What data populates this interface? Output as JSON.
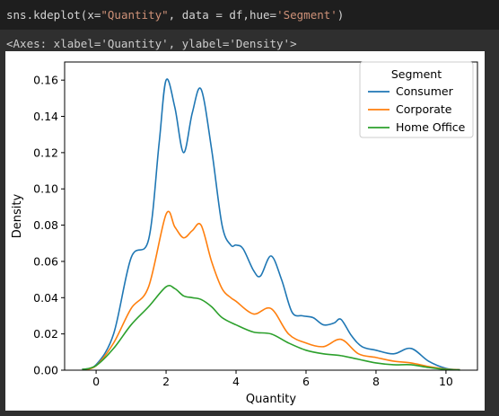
{
  "cell": {
    "code": {
      "func": "sns.kdeplot",
      "open": "(x=",
      "x_arg": "\"Quantity\"",
      "mid": ", data = df,hue=",
      "hue_arg": "'Segment'",
      "close": ")"
    },
    "output_repr": "<Axes: xlabel='Quantity', ylabel='Density'>"
  },
  "chart_data": {
    "type": "line",
    "xlabel": "Quantity",
    "ylabel": "Density",
    "xlim": [
      -0.9,
      10.9
    ],
    "ylim": [
      0,
      0.17
    ],
    "xticks": [
      0,
      2,
      4,
      6,
      8,
      10
    ],
    "yticks": [
      0.0,
      0.02,
      0.04,
      0.06,
      0.08,
      0.1,
      0.12,
      0.14,
      0.16
    ],
    "ytick_labels": [
      "0.00",
      "0.02",
      "0.04",
      "0.06",
      "0.08",
      "0.10",
      "0.12",
      "0.14",
      "0.16"
    ],
    "grid": false,
    "legend": {
      "title": "Segment",
      "placement": "top-right"
    },
    "series": [
      {
        "name": "Consumer",
        "color": "#1f77b4",
        "x": [
          -0.4,
          0.0,
          0.5,
          1.0,
          1.5,
          1.8,
          2.0,
          2.25,
          2.5,
          2.75,
          3.0,
          3.3,
          3.6,
          3.85,
          4.0,
          4.2,
          4.5,
          4.7,
          5.0,
          5.3,
          5.6,
          5.9,
          6.2,
          6.5,
          6.8,
          7.0,
          7.3,
          7.6,
          8.0,
          8.5,
          9.0,
          9.5,
          10.0,
          10.4
        ],
        "y": [
          0.0005,
          0.003,
          0.02,
          0.062,
          0.072,
          0.125,
          0.16,
          0.145,
          0.12,
          0.142,
          0.155,
          0.122,
          0.08,
          0.069,
          0.069,
          0.067,
          0.055,
          0.052,
          0.063,
          0.05,
          0.032,
          0.03,
          0.029,
          0.025,
          0.026,
          0.028,
          0.019,
          0.013,
          0.011,
          0.009,
          0.012,
          0.005,
          0.001,
          0.0003
        ]
      },
      {
        "name": "Corporate",
        "color": "#ff7f0e",
        "x": [
          -0.4,
          0.0,
          0.5,
          1.0,
          1.5,
          2.0,
          2.25,
          2.5,
          2.75,
          3.0,
          3.3,
          3.6,
          3.85,
          4.0,
          4.5,
          5.0,
          5.5,
          6.0,
          6.5,
          7.0,
          7.5,
          8.0,
          8.5,
          9.0,
          9.5,
          10.0,
          10.4
        ],
        "y": [
          0.0003,
          0.0025,
          0.015,
          0.034,
          0.046,
          0.086,
          0.079,
          0.073,
          0.077,
          0.08,
          0.06,
          0.045,
          0.04,
          0.038,
          0.031,
          0.034,
          0.02,
          0.015,
          0.013,
          0.017,
          0.009,
          0.007,
          0.005,
          0.004,
          0.002,
          0.0006,
          0.0002
        ]
      },
      {
        "name": "Home Office",
        "color": "#2ca02c",
        "x": [
          -0.4,
          0.0,
          0.5,
          1.0,
          1.5,
          2.0,
          2.25,
          2.5,
          2.75,
          3.0,
          3.3,
          3.6,
          4.0,
          4.5,
          5.0,
          5.5,
          6.0,
          6.5,
          7.0,
          7.5,
          8.0,
          8.5,
          9.0,
          9.5,
          10.0,
          10.4
        ],
        "y": [
          0.0003,
          0.0025,
          0.012,
          0.025,
          0.035,
          0.046,
          0.045,
          0.041,
          0.04,
          0.039,
          0.035,
          0.029,
          0.025,
          0.021,
          0.02,
          0.015,
          0.011,
          0.009,
          0.008,
          0.006,
          0.004,
          0.003,
          0.003,
          0.0015,
          0.0004,
          0.0001
        ]
      }
    ]
  }
}
